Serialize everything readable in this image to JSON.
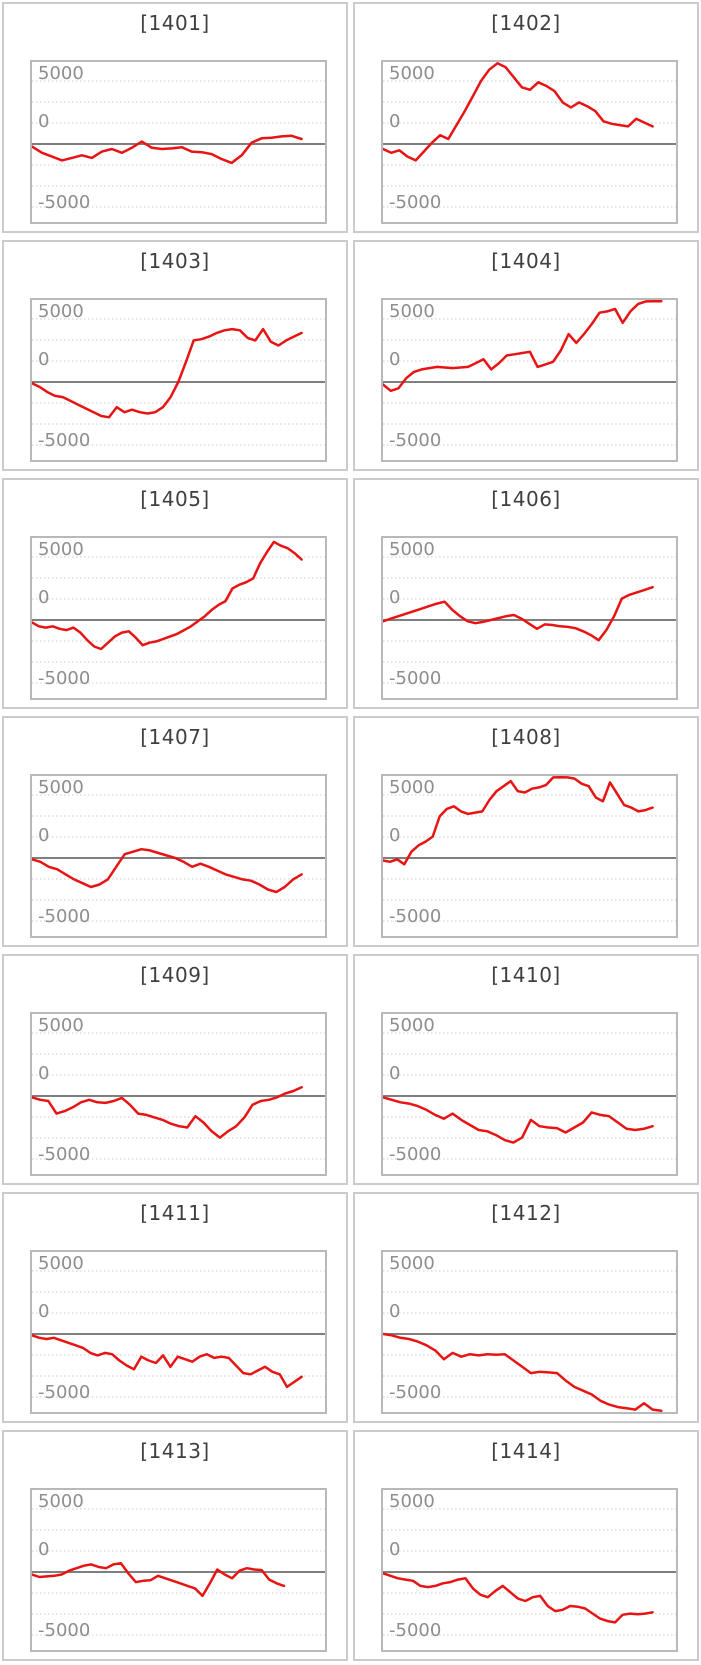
{
  "page": {
    "background": "#ffffff",
    "description": "Grid of 14 daily win/loss line charts for machines 1401-1414"
  },
  "style": {
    "line_color": "#e81414",
    "zero_line_color": "#7f7f7f",
    "gridline_color": "#cdcdcd",
    "plot_border_color": "#b9b9b9",
    "card_border_color": "#cbcbcb",
    "title_color": "#3f3f3f",
    "tick_label_color": "#8e8e8e"
  },
  "axis": {
    "tick_labels": {
      "top": "5000",
      "mid": "0",
      "bot": "-5000"
    },
    "tick_values": [
      5000,
      0,
      -5000
    ],
    "gridline_values": [
      5000,
      3333,
      1667,
      0,
      -1667,
      -3333,
      -5000
    ],
    "ylim": [
      -6200,
      6500
    ],
    "grid": "dotted horizontal lines, solid zero line"
  },
  "chart_data": [
    {
      "type": "line",
      "title": "[1401]",
      "machine_id": "1401",
      "x_end_fraction": 0.92,
      "values": [
        -200,
        -700,
        -1000,
        -1300,
        -1100,
        -900,
        -1100,
        -600,
        -400,
        -700,
        -300,
        200,
        -300,
        -400,
        -350,
        -250,
        -600,
        -650,
        -800,
        -1200,
        -1500,
        -900,
        100,
        450,
        500,
        600,
        650,
        400
      ]
    },
    {
      "type": "line",
      "title": "[1402]",
      "machine_id": "1402",
      "x_end_fraction": 0.92,
      "values": [
        -400,
        -700,
        -500,
        -1000,
        -1300,
        -600,
        100,
        700,
        400,
        1500,
        2600,
        3800,
        5000,
        5900,
        6500,
        6100,
        5300,
        4500,
        4300,
        4900,
        4600,
        4200,
        3300,
        2900,
        3300,
        3000,
        2600,
        1800,
        1600,
        1500,
        1400,
        2000,
        1700,
        1400
      ]
    },
    {
      "type": "line",
      "title": "[1403]",
      "machine_id": "1403",
      "x_end_fraction": 0.92,
      "values": [
        -100,
        -400,
        -800,
        -1100,
        -1200,
        -1500,
        -1800,
        -2100,
        -2400,
        -2700,
        -2800,
        -2000,
        -2400,
        -2200,
        -2400,
        -2500,
        -2400,
        -2000,
        -1200,
        0,
        1600,
        3300,
        3400,
        3600,
        3900,
        4100,
        4200,
        4100,
        3500,
        3300,
        4200,
        3200,
        2900,
        3300,
        3600,
        3900
      ]
    },
    {
      "type": "line",
      "title": "[1404]",
      "machine_id": "1404",
      "x_end_fraction": 0.95,
      "values": [
        -200,
        -700,
        -500,
        300,
        800,
        1000,
        1100,
        1200,
        1150,
        1100,
        1150,
        1200,
        1500,
        1800,
        1000,
        1500,
        2100,
        2200,
        2300,
        2400,
        1200,
        1400,
        1600,
        2500,
        3800,
        3100,
        3800,
        4600,
        5500,
        5600,
        5800,
        4700,
        5600,
        6200,
        6400,
        6500,
        6600
      ]
    },
    {
      "type": "line",
      "title": "[1405]",
      "machine_id": "1405",
      "x_end_fraction": 0.92,
      "values": [
        -200,
        -500,
        -600,
        -500,
        -700,
        -800,
        -600,
        -1000,
        -1600,
        -2100,
        -2300,
        -1800,
        -1300,
        -1000,
        -900,
        -1400,
        -2000,
        -1800,
        -1700,
        -1500,
        -1300,
        -1100,
        -800,
        -500,
        -100,
        300,
        800,
        1200,
        1500,
        2500,
        2800,
        3000,
        3300,
        4500,
        5400,
        6200,
        5900,
        5700,
        5300,
        4800
      ]
    },
    {
      "type": "line",
      "title": "[1406]",
      "machine_id": "1406",
      "x_end_fraction": 0.92,
      "values": [
        -100,
        100,
        300,
        500,
        700,
        900,
        1100,
        1300,
        1450,
        800,
        300,
        -100,
        -250,
        -150,
        0,
        150,
        300,
        400,
        100,
        -300,
        -700,
        -350,
        -400,
        -500,
        -550,
        -650,
        -900,
        -1200,
        -1600,
        -800,
        300,
        1700,
        2000,
        2200,
        2400,
        2600
      ]
    },
    {
      "type": "line",
      "title": "[1407]",
      "machine_id": "1407",
      "x_end_fraction": 0.92,
      "values": [
        -100,
        -300,
        -700,
        -900,
        -1300,
        -1700,
        -2000,
        -2300,
        -2100,
        -1700,
        -700,
        300,
        500,
        700,
        600,
        400,
        200,
        0,
        -300,
        -700,
        -450,
        -700,
        -1000,
        -1300,
        -1500,
        -1700,
        -1800,
        -2100,
        -2500,
        -2700,
        -2300,
        -1700,
        -1300
      ]
    },
    {
      "type": "line",
      "title": "[1408]",
      "machine_id": "1408",
      "x_end_fraction": 0.92,
      "values": [
        -200,
        -300,
        -100,
        -500,
        500,
        1000,
        1300,
        1700,
        3300,
        3900,
        4100,
        3700,
        3500,
        3600,
        3700,
        4600,
        5300,
        5700,
        6100,
        5300,
        5200,
        5500,
        5600,
        5800,
        6400,
        6600,
        6400,
        6300,
        5900,
        5700,
        4800,
        4500,
        6000,
        5100,
        4200,
        4000,
        3700,
        3800,
        4000
      ]
    },
    {
      "type": "line",
      "title": "[1409]",
      "machine_id": "1409",
      "x_end_fraction": 0.92,
      "values": [
        -100,
        -300,
        -400,
        -1400,
        -1200,
        -900,
        -500,
        -300,
        -500,
        -550,
        -400,
        -150,
        -700,
        -1400,
        -1500,
        -1700,
        -1900,
        -2200,
        -2400,
        -2500,
        -1600,
        -2100,
        -2800,
        -3300,
        -2800,
        -2400,
        -1700,
        -700,
        -400,
        -300,
        -100,
        200,
        400,
        700
      ]
    },
    {
      "type": "line",
      "title": "[1410]",
      "machine_id": "1410",
      "x_end_fraction": 0.92,
      "values": [
        -100,
        -300,
        -500,
        -600,
        -800,
        -1100,
        -1500,
        -1800,
        -1400,
        -1900,
        -2300,
        -2700,
        -2800,
        -3100,
        -3500,
        -3700,
        -3300,
        -1900,
        -2400,
        -2500,
        -2550,
        -2900,
        -2500,
        -2100,
        -1300,
        -1500,
        -1600,
        -2100,
        -2600,
        -2700,
        -2600,
        -2400
      ]
    },
    {
      "type": "line",
      "title": "[1411]",
      "machine_id": "1411",
      "x_end_fraction": 0.92,
      "values": [
        -100,
        -300,
        -400,
        -300,
        -500,
        -700,
        -900,
        -1100,
        -1500,
        -1700,
        -1500,
        -1600,
        -2100,
        -2500,
        -2800,
        -1800,
        -2100,
        -2300,
        -1700,
        -2600,
        -1800,
        -2000,
        -2200,
        -1800,
        -1600,
        -1900,
        -1800,
        -1900,
        -2500,
        -3100,
        -3200,
        -2900,
        -2600,
        -3000,
        -3200,
        -4200,
        -3800,
        -3400
      ]
    },
    {
      "type": "line",
      "title": "[1412]",
      "machine_id": "1412",
      "x_end_fraction": 0.95,
      "values": [
        0,
        -100,
        -300,
        -400,
        -600,
        -900,
        -1300,
        -2000,
        -1500,
        -1800,
        -1600,
        -1700,
        -1600,
        -1650,
        -1600,
        -2100,
        -2600,
        -3100,
        -3000,
        -3050,
        -3100,
        -3700,
        -4200,
        -4500,
        -4800,
        -5300,
        -5600,
        -5800,
        -5900,
        -6000,
        -5500,
        -6000,
        -6300
      ]
    },
    {
      "type": "line",
      "title": "[1413]",
      "machine_id": "1413",
      "x_end_fraction": 0.86,
      "values": [
        -200,
        -400,
        -350,
        -300,
        -200,
        100,
        300,
        500,
        600,
        400,
        300,
        600,
        700,
        -100,
        -800,
        -700,
        -650,
        -300,
        -500,
        -700,
        -900,
        -1100,
        -1300,
        -1900,
        -900,
        200,
        -200,
        -500,
        100,
        300,
        200,
        150,
        -600,
        -900,
        -1100
      ]
    },
    {
      "type": "line",
      "title": "[1414]",
      "machine_id": "1414",
      "x_end_fraction": 0.92,
      "values": [
        -100,
        -300,
        -500,
        -600,
        -700,
        -1100,
        -1200,
        -1100,
        -900,
        -800,
        -600,
        -500,
        -1300,
        -1800,
        -2000,
        -1500,
        -1100,
        -1600,
        -2100,
        -2300,
        -2000,
        -1900,
        -2700,
        -3100,
        -3000,
        -2700,
        -2750,
        -2900,
        -3300,
        -3700,
        -3900,
        -4000,
        -3400,
        -3300,
        -3350,
        -3300,
        -3200
      ]
    }
  ]
}
